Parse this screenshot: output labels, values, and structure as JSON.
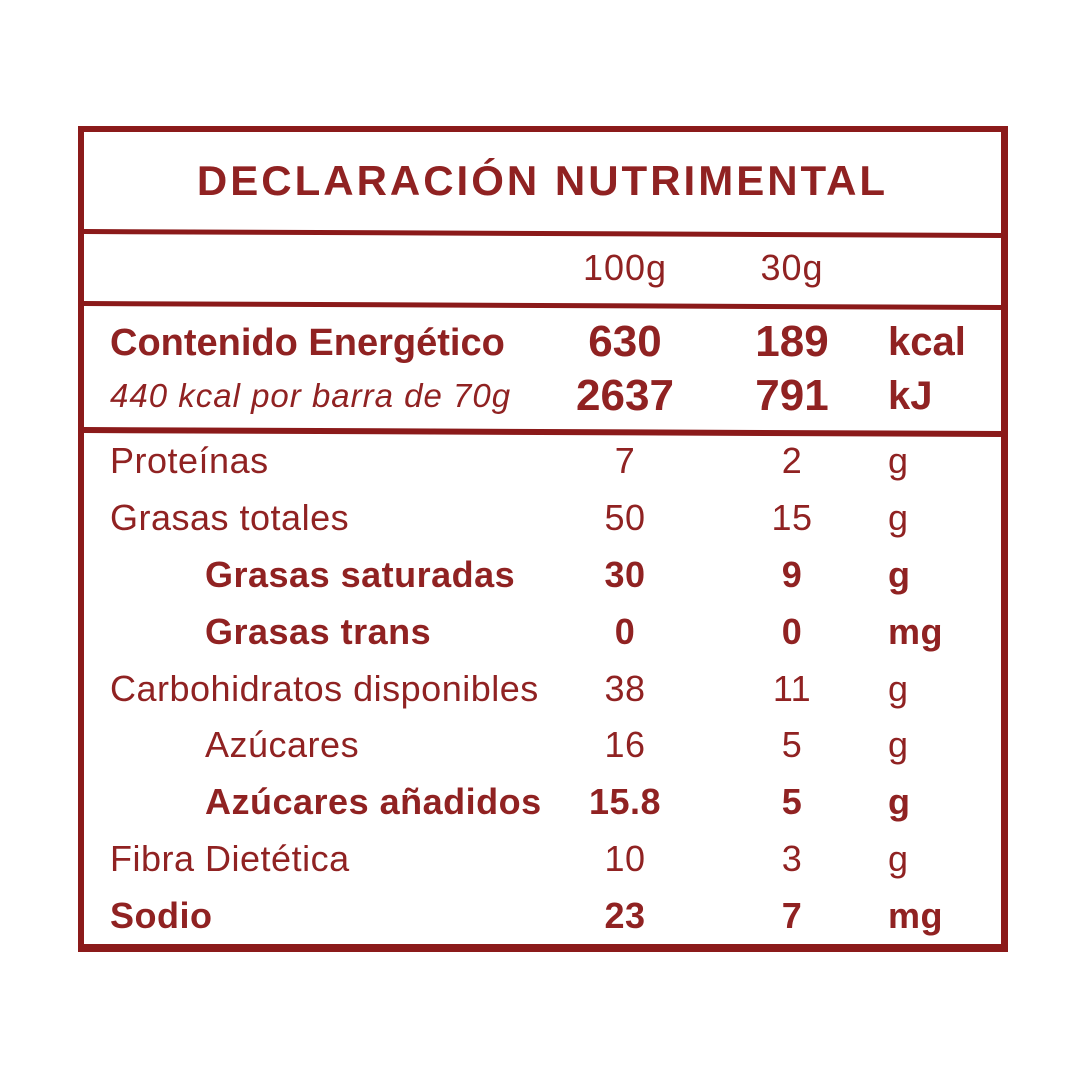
{
  "title": "DECLARACIÓN NUTRIMENTAL",
  "columns": {
    "col1": "100g",
    "col2": "30g"
  },
  "energy": {
    "label": "Contenido Energético",
    "subtitle": "440 kcal por barra de 70g",
    "kcal": {
      "v100": "630",
      "v30": "189",
      "unit": "kcal"
    },
    "kj": {
      "v100": "2637",
      "v30": "791",
      "unit": "kJ"
    }
  },
  "rows": [
    {
      "label": "Proteínas",
      "v100": "7",
      "v30": "2",
      "unit": "g",
      "emphasis": false,
      "indented": false
    },
    {
      "label": "Grasas totales",
      "v100": "50",
      "v30": "15",
      "unit": "g",
      "emphasis": false,
      "indented": false
    },
    {
      "label": "Grasas saturadas",
      "v100": "30",
      "v30": "9",
      "unit": "g",
      "emphasis": true,
      "indented": true
    },
    {
      "label": "Grasas trans",
      "v100": "0",
      "v30": "0",
      "unit": "mg",
      "emphasis": true,
      "indented": true
    },
    {
      "label": "Carbohidratos disponibles",
      "v100": "38",
      "v30": "11",
      "unit": "g",
      "emphasis": false,
      "indented": false
    },
    {
      "label": "Azúcares",
      "v100": "16",
      "v30": "5",
      "unit": "g",
      "emphasis": false,
      "indented": true
    },
    {
      "label": "Azúcares añadidos",
      "v100": "15.8",
      "v30": "5",
      "unit": "g",
      "emphasis": true,
      "indented": true
    },
    {
      "label": "Fibra Dietética",
      "v100": "10",
      "v30": "3",
      "unit": "g",
      "emphasis": false,
      "indented": false
    },
    {
      "label": "Sodio",
      "v100": "23",
      "v30": "7",
      "unit": "mg",
      "emphasis": true,
      "indented": false
    }
  ],
  "colors": {
    "accent": "#8B1A1A",
    "text": "#902222",
    "background": "#FFFFFF"
  }
}
